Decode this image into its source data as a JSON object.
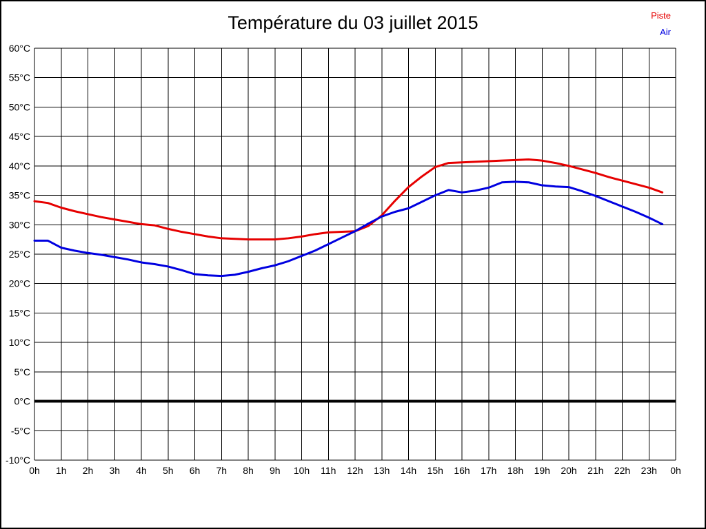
{
  "title": "Température du 03 juillet 2015",
  "legend": [
    {
      "label": "Piste",
      "color": "#e60000"
    },
    {
      "label": "Air",
      "color": "#0000e0"
    }
  ],
  "chart_data": {
    "type": "line",
    "title": "Température du 03 juillet 2015",
    "grid": true,
    "grid_color": "#000000",
    "background_color": "#ffffff",
    "legend_position": "top-right",
    "zero_line_bold": true,
    "xlim": [
      0,
      24
    ],
    "ylim": [
      -10,
      60
    ],
    "y_step": 5,
    "x_tick_labels": [
      "0h",
      "1h",
      "2h",
      "3h",
      "4h",
      "5h",
      "6h",
      "7h",
      "8h",
      "9h",
      "10h",
      "11h",
      "12h",
      "13h",
      "14h",
      "15h",
      "16h",
      "17h",
      "18h",
      "19h",
      "20h",
      "21h",
      "22h",
      "23h",
      "0h"
    ],
    "y_tick_labels": [
      "60°C",
      "55°C",
      "50°C",
      "45°C",
      "40°C",
      "35°C",
      "30°C",
      "25°C",
      "20°C",
      "15°C",
      "10°C",
      "5°C",
      "0°C",
      "-5°C",
      "-10°C"
    ],
    "x": [
      0,
      0.5,
      1,
      1.5,
      2,
      2.5,
      3,
      3.5,
      4,
      4.5,
      5,
      5.5,
      6,
      6.5,
      7,
      7.5,
      8,
      8.5,
      9,
      9.5,
      10,
      10.5,
      11,
      11.5,
      12,
      12.5,
      13,
      13.5,
      14,
      14.5,
      15,
      15.5,
      16,
      16.5,
      17,
      17.5,
      18,
      18.5,
      19,
      19.5,
      20,
      20.5,
      21,
      21.5,
      22,
      22.5,
      23,
      23.5
    ],
    "series": [
      {
        "name": "Piste",
        "color": "#e60000",
        "values": [
          34.0,
          33.7,
          32.9,
          32.3,
          31.8,
          31.3,
          30.9,
          30.5,
          30.1,
          29.9,
          29.3,
          28.8,
          28.4,
          28.0,
          27.7,
          27.6,
          27.5,
          27.5,
          27.5,
          27.7,
          28.0,
          28.4,
          28.7,
          28.8,
          28.9,
          29.8,
          31.6,
          34.1,
          36.4,
          38.2,
          39.8,
          40.5,
          40.6,
          40.7,
          40.8,
          40.9,
          41.0,
          41.1,
          40.9,
          40.5,
          40.0,
          39.4,
          38.8,
          38.1,
          37.5,
          36.9,
          36.3,
          35.5
        ]
      },
      {
        "name": "Air",
        "color": "#0000e0",
        "values": [
          27.3,
          27.3,
          26.1,
          25.6,
          25.2,
          24.9,
          24.5,
          24.1,
          23.6,
          23.3,
          22.9,
          22.3,
          21.6,
          21.4,
          21.3,
          21.5,
          22.0,
          22.6,
          23.1,
          23.8,
          24.7,
          25.6,
          26.7,
          27.8,
          28.9,
          30.2,
          31.4,
          32.2,
          32.8,
          33.9,
          35.0,
          35.9,
          35.5,
          35.8,
          36.3,
          37.2,
          37.3,
          37.2,
          36.7,
          36.5,
          36.4,
          35.7,
          34.9,
          34.0,
          33.1,
          32.2,
          31.2,
          30.1
        ]
      }
    ]
  }
}
